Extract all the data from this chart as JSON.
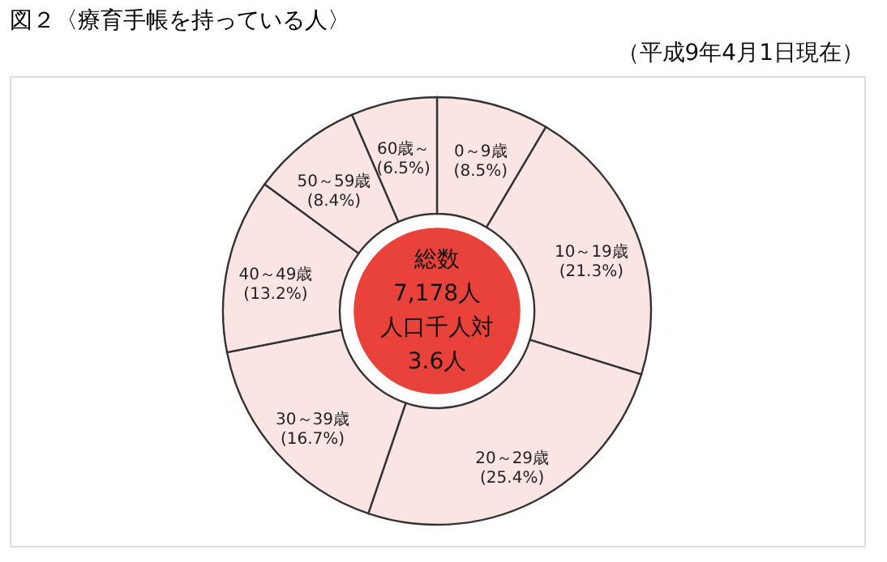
{
  "chart_data": {
    "type": "donut",
    "title": "図２〈療育手帳を持っている人〉",
    "subtitle": "（平成9年4月1日現在）",
    "categories": [
      "0～9歳",
      "10～19歳",
      "20～29歳",
      "30～39歳",
      "40～49歳",
      "50～59歳",
      "60歳～"
    ],
    "values": [
      8.5,
      21.3,
      25.4,
      16.7,
      13.2,
      8.4,
      6.5
    ],
    "value_labels": [
      "(8.5%)",
      "(21.3%)",
      "(25.4%)",
      "(16.7%)",
      "(13.2%)",
      "(8.4%)",
      "(6.5%)"
    ],
    "colors": [
      "#fbe4e4",
      "#fbe4e4",
      "#fbe4e4",
      "#fbe4e4",
      "#fbe4e4",
      "#fbe4e4",
      "#fbe4e4"
    ],
    "annotations": [
      "総数",
      "7,178人",
      "人口千人対",
      "3.6人"
    ],
    "legend": false
  }
}
